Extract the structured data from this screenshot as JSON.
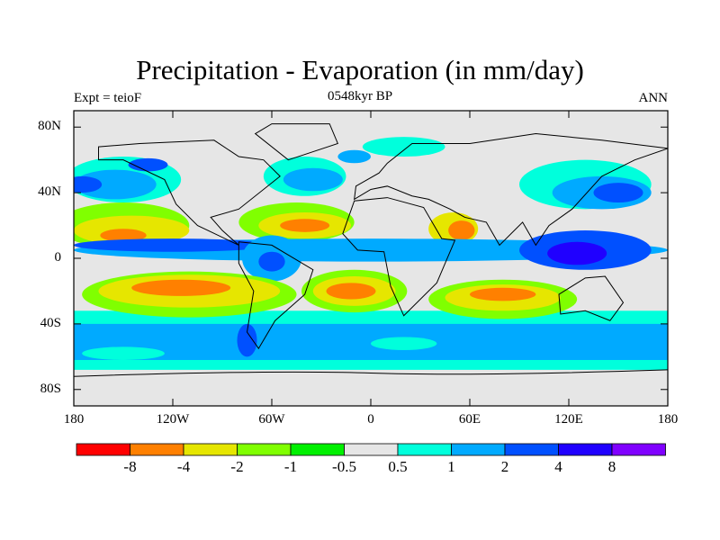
{
  "title": "Precipitation - Evaporation (in mm/day)",
  "left_label": "Expt = teioF",
  "center_label": "0548kyr BP",
  "right_label": "ANN",
  "lat_ticks": [
    {
      "v": 80,
      "label": "80N"
    },
    {
      "v": 40,
      "label": "40N"
    },
    {
      "v": 0,
      "label": "0"
    },
    {
      "v": -40,
      "label": "40S"
    },
    {
      "v": -80,
      "label": "80S"
    }
  ],
  "lon_ticks": [
    {
      "v": -180,
      "label": "180"
    },
    {
      "v": -120,
      "label": "120W"
    },
    {
      "v": -60,
      "label": "60W"
    },
    {
      "v": 0,
      "label": "0"
    },
    {
      "v": 60,
      "label": "60E"
    },
    {
      "v": 120,
      "label": "120E"
    },
    {
      "v": 180,
      "label": "180"
    }
  ],
  "colorbar": {
    "colors": [
      "#ff0000",
      "#ff8000",
      "#e6e600",
      "#80ff00",
      "#00f000",
      "#e6e6e6",
      "#00ffdc",
      "#00aaff",
      "#0050ff",
      "#2000ff",
      "#8000ff"
    ],
    "labels": [
      "-8",
      "-4",
      "-2",
      "-1",
      "-0.5",
      "0.5",
      "1",
      "2",
      "4",
      "8"
    ]
  }
}
